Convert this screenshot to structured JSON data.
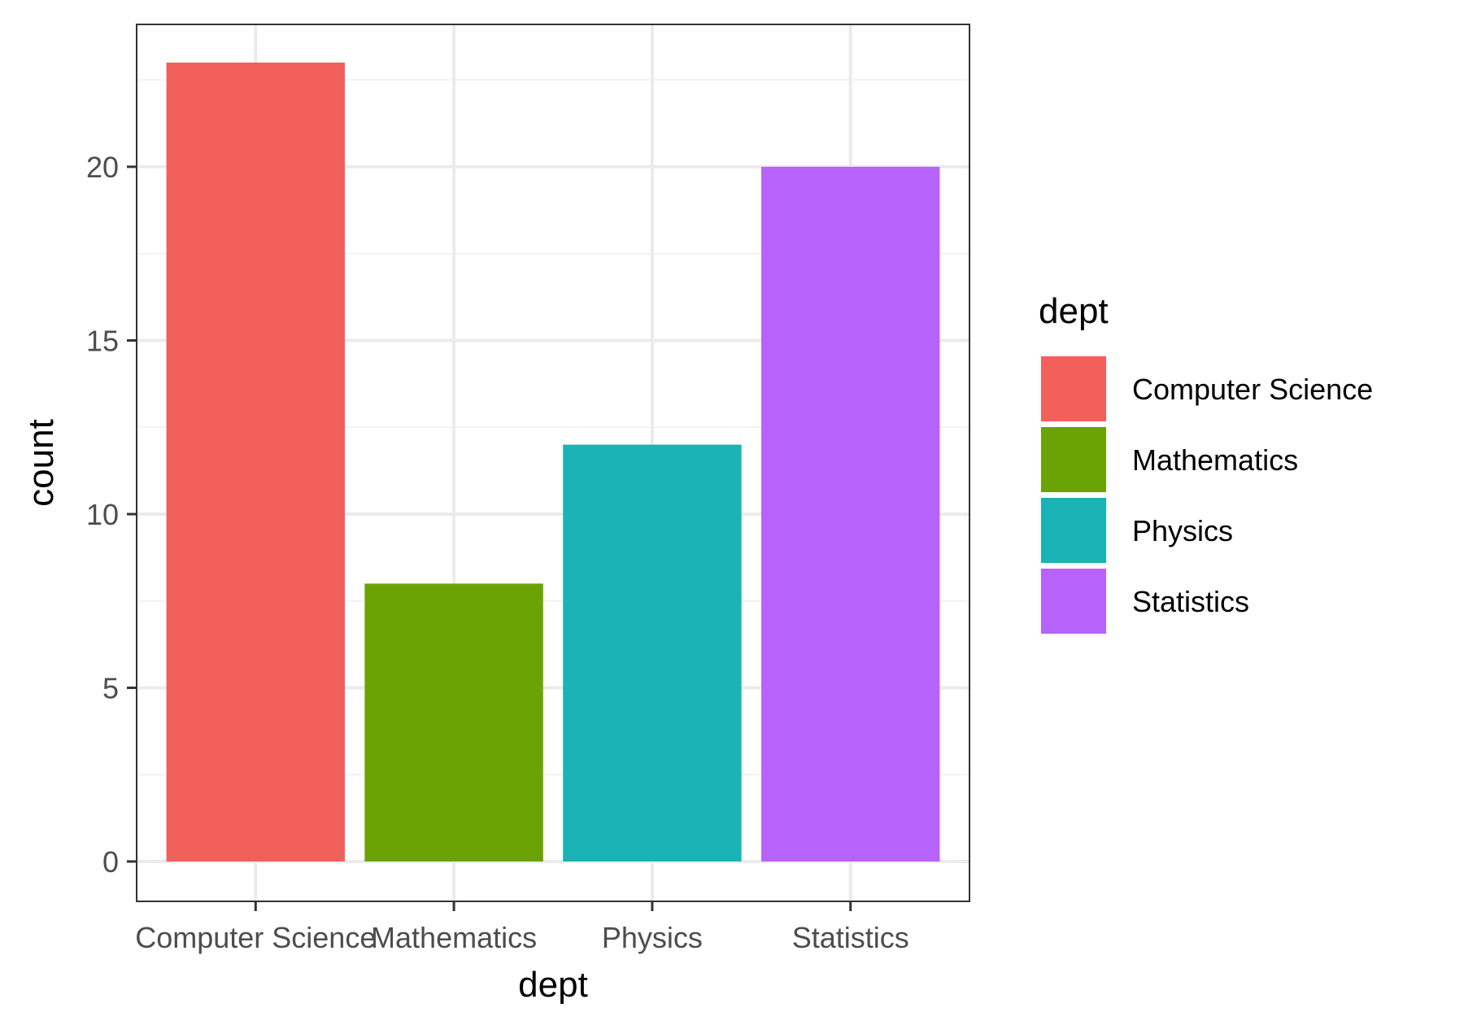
{
  "chart_data": {
    "type": "bar",
    "categories": [
      "Computer Science",
      "Mathematics",
      "Physics",
      "Statistics"
    ],
    "values": [
      23,
      8,
      12,
      20
    ],
    "colors": [
      "#F2605C",
      "#6BA305",
      "#1AB3B6",
      "#B862FC"
    ],
    "xlabel": "dept",
    "ylabel": "count",
    "ylim": [
      0,
      24
    ],
    "yticks": [
      0,
      5,
      10,
      15,
      20
    ],
    "ytick_labels": [
      "0",
      "5",
      "10",
      "15",
      "20"
    ],
    "grid": true,
    "legend": {
      "title": "dept",
      "position": "right",
      "entries": [
        "Computer Science",
        "Mathematics",
        "Physics",
        "Statistics"
      ]
    },
    "theme": {
      "panel_border": "#333333",
      "grid_major": "#EBEBEB",
      "grid_minor": "#F2F2F2",
      "axis_tick": "#333333"
    }
  }
}
